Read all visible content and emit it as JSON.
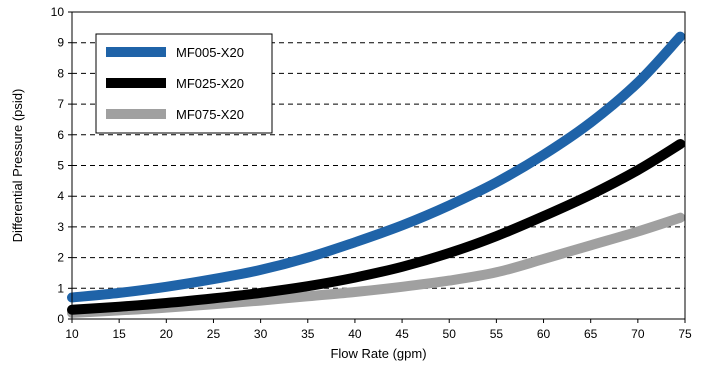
{
  "chart_data": {
    "type": "line",
    "title": "",
    "xlabel": "Flow Rate (gpm)",
    "ylabel": "Differential Pressure (psid)",
    "xlim": [
      10,
      75
    ],
    "ylim": [
      0,
      10
    ],
    "x_ticks": [
      10,
      15,
      20,
      25,
      30,
      35,
      40,
      45,
      50,
      55,
      60,
      65,
      70,
      75
    ],
    "y_ticks": [
      0,
      1,
      2,
      3,
      4,
      5,
      6,
      7,
      8,
      9,
      10
    ],
    "grid": "horizontal dashed",
    "legend_position": "top-left",
    "series": [
      {
        "name": "MF005-X20",
        "color": "#1f63a8",
        "points": [
          [
            10,
            0.7
          ],
          [
            15,
            0.85
          ],
          [
            20,
            1.05
          ],
          [
            25,
            1.3
          ],
          [
            30,
            1.6
          ],
          [
            35,
            2.0
          ],
          [
            40,
            2.5
          ],
          [
            45,
            3.05
          ],
          [
            50,
            3.7
          ],
          [
            55,
            4.45
          ],
          [
            60,
            5.35
          ],
          [
            65,
            6.4
          ],
          [
            70,
            7.7
          ],
          [
            74.5,
            9.2
          ]
        ]
      },
      {
        "name": "MF025-X20",
        "color": "#000000",
        "points": [
          [
            10,
            0.3
          ],
          [
            15,
            0.4
          ],
          [
            20,
            0.52
          ],
          [
            25,
            0.67
          ],
          [
            30,
            0.85
          ],
          [
            35,
            1.07
          ],
          [
            40,
            1.35
          ],
          [
            45,
            1.7
          ],
          [
            50,
            2.15
          ],
          [
            55,
            2.7
          ],
          [
            60,
            3.35
          ],
          [
            65,
            4.05
          ],
          [
            70,
            4.85
          ],
          [
            74.5,
            5.7
          ]
        ]
      },
      {
        "name": "MF075-X20",
        "color": "#a0a0a0",
        "points": [
          [
            10,
            0.2
          ],
          [
            15,
            0.28
          ],
          [
            20,
            0.37
          ],
          [
            25,
            0.48
          ],
          [
            30,
            0.6
          ],
          [
            35,
            0.74
          ],
          [
            40,
            0.88
          ],
          [
            45,
            1.05
          ],
          [
            50,
            1.25
          ],
          [
            55,
            1.52
          ],
          [
            60,
            1.95
          ],
          [
            65,
            2.4
          ],
          [
            70,
            2.85
          ],
          [
            74.5,
            3.3
          ]
        ]
      }
    ]
  }
}
